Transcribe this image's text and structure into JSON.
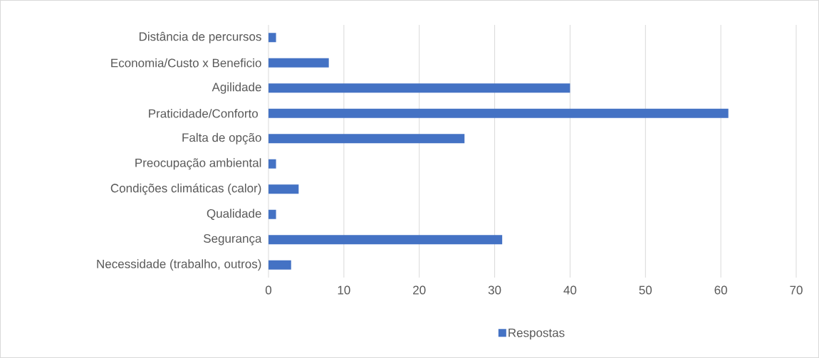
{
  "chart_data": {
    "type": "bar",
    "orientation": "horizontal",
    "categories": [
      "Distância de percursos",
      "Economia/Custo x Beneficio",
      "Agilidade",
      "Praticidade/Conforto ",
      "Falta de opção",
      "Preocupação ambiental",
      "Condições climáticas (calor)",
      "Qualidade",
      "Segurança",
      "Necessidade (trabalho, outros)"
    ],
    "series": [
      {
        "name": "Respostas",
        "color": "#4472c4",
        "values": [
          1,
          8,
          40,
          61,
          26,
          1,
          4,
          1,
          31,
          3
        ]
      }
    ],
    "xlim": [
      0,
      70
    ],
    "xticks": [
      0,
      10,
      20,
      30,
      40,
      50,
      60,
      70
    ],
    "grid": "x",
    "legend": "bottom"
  }
}
